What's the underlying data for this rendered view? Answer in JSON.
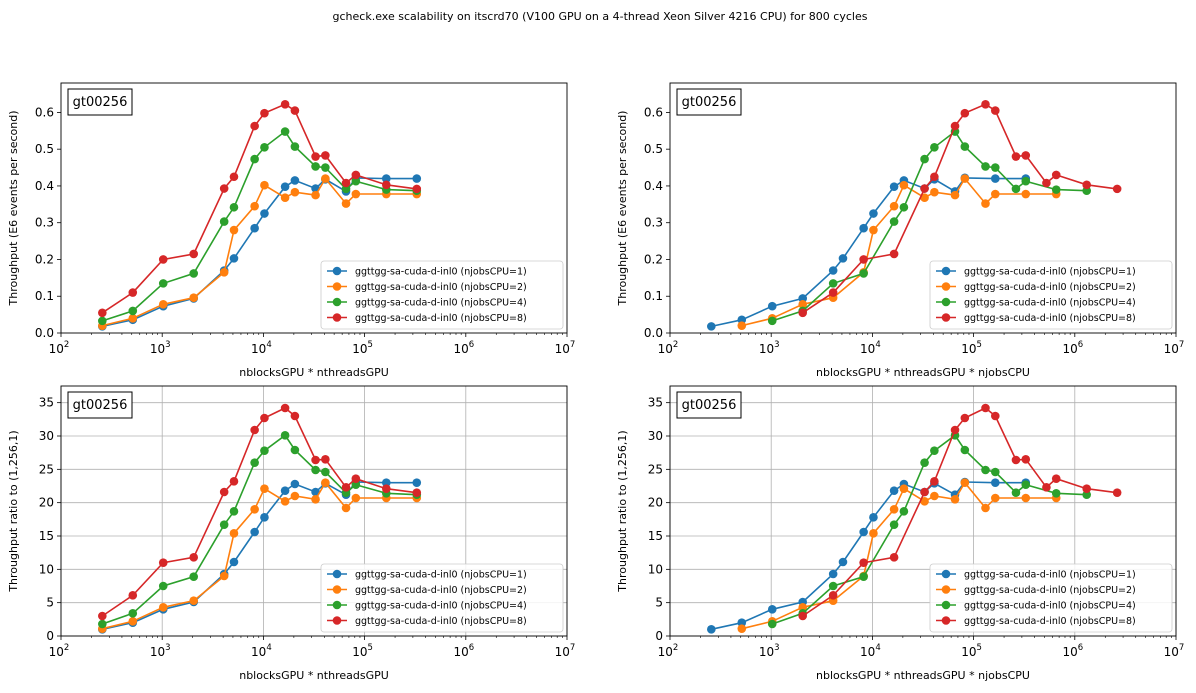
{
  "suptitle": "gcheck.exe scalability on itscrd70 (V100 GPU on a 4-thread Xeon Silver 4216 CPU) for 800 cycles",
  "colors": {
    "njobsCPU=1": "#1f77b4",
    "njobsCPU=2": "#ff7f0e",
    "njobsCPU=4": "#2ca02c",
    "njobsCPU=8": "#d62728",
    "grid": "#b0b0b0"
  },
  "legend_labels": [
    "ggttgg-sa-cuda-d-inl0 (njobsCPU=1)",
    "ggttgg-sa-cuda-d-inl0 (njobsCPU=2)",
    "ggttgg-sa-cuda-d-inl0 (njobsCPU=4)",
    "ggttgg-sa-cuda-d-inl0 (njobsCPU=8)"
  ],
  "chart_data": [
    {
      "type": "line",
      "panel": "top-left",
      "box_label": "gt00256",
      "xlabel": "nblocksGPU * nthreadsGPU",
      "ylabel": "Throughput (E6 events per second)",
      "xscale": "log",
      "xlim": [
        100,
        10000000
      ],
      "ylim": [
        0,
        0.68
      ],
      "yticks": [
        "0.0",
        "0.1",
        "0.2",
        "0.3",
        "0.4",
        "0.5",
        "0.6"
      ],
      "xticks": [
        "10^2",
        "10^3",
        "10^4",
        "10^5",
        "10^6",
        "10^7"
      ],
      "grid": false,
      "legend": "lower-right",
      "series": [
        {
          "name": "ggttgg-sa-cuda-d-inl0 (njobsCPU=1)",
          "color": "#1f77b4",
          "x": [
            256,
            512,
            1024,
            2048,
            4096,
            5120,
            8192,
            10240,
            16384,
            20480,
            32768,
            40960,
            65536,
            81920,
            163840,
            327680
          ],
          "y": [
            0.018,
            0.036,
            0.073,
            0.094,
            0.17,
            0.203,
            0.285,
            0.325,
            0.398,
            0.415,
            0.393,
            0.418,
            0.385,
            0.422,
            0.42,
            0.42
          ]
        },
        {
          "name": "ggttgg-sa-cuda-d-inl0 (njobsCPU=2)",
          "color": "#ff7f0e",
          "x": [
            256,
            512,
            1024,
            2048,
            4096,
            5120,
            8192,
            10240,
            16384,
            20480,
            32768,
            40960,
            65536,
            81920,
            163840,
            327680
          ],
          "y": [
            0.02,
            0.04,
            0.078,
            0.096,
            0.165,
            0.28,
            0.345,
            0.402,
            0.368,
            0.383,
            0.375,
            0.42,
            0.352,
            0.378,
            0.378,
            0.378
          ]
        },
        {
          "name": "ggttgg-sa-cuda-d-inl0 (njobsCPU=4)",
          "color": "#2ca02c",
          "x": [
            256,
            512,
            1024,
            2048,
            4096,
            5120,
            8192,
            10240,
            16384,
            20480,
            32768,
            40960,
            65536,
            81920,
            163840,
            327680
          ],
          "y": [
            0.033,
            0.06,
            0.135,
            0.162,
            0.303,
            0.342,
            0.473,
            0.505,
            0.548,
            0.507,
            0.453,
            0.45,
            0.392,
            0.413,
            0.39,
            0.387
          ]
        },
        {
          "name": "ggttgg-sa-cuda-d-inl0 (njobsCPU=8)",
          "color": "#d62728",
          "x": [
            256,
            512,
            1024,
            2048,
            4096,
            5120,
            8192,
            10240,
            16384,
            20480,
            32768,
            40960,
            65536,
            81920,
            163840,
            327680
          ],
          "y": [
            0.055,
            0.11,
            0.2,
            0.215,
            0.393,
            0.425,
            0.563,
            0.598,
            0.622,
            0.605,
            0.48,
            0.483,
            0.408,
            0.43,
            0.403,
            0.392
          ]
        }
      ]
    },
    {
      "type": "line",
      "panel": "top-right",
      "box_label": "gt00256",
      "xlabel": "nblocksGPU * nthreadsGPU * njobsCPU",
      "ylabel": "Throughput (E6 events per second)",
      "xscale": "log",
      "xlim": [
        100,
        10000000
      ],
      "ylim": [
        0,
        0.68
      ],
      "yticks": [
        "0.0",
        "0.1",
        "0.2",
        "0.3",
        "0.4",
        "0.5",
        "0.6"
      ],
      "xticks": [
        "10^2",
        "10^3",
        "10^4",
        "10^5",
        "10^6",
        "10^7"
      ],
      "grid": false,
      "legend": "lower-right",
      "series": [
        {
          "name": "ggttgg-sa-cuda-d-inl0 (njobsCPU=1)",
          "color": "#1f77b4",
          "x": [
            256,
            512,
            1024,
            2048,
            4096,
            5120,
            8192,
            10240,
            16384,
            20480,
            32768,
            40960,
            65536,
            81920,
            163840,
            327680
          ],
          "y": [
            0.018,
            0.036,
            0.073,
            0.094,
            0.17,
            0.203,
            0.285,
            0.325,
            0.398,
            0.415,
            0.393,
            0.418,
            0.385,
            0.422,
            0.42,
            0.42
          ]
        },
        {
          "name": "ggttgg-sa-cuda-d-inl0 (njobsCPU=2)",
          "color": "#ff7f0e",
          "x": [
            512,
            1024,
            2048,
            4096,
            8192,
            10240,
            16384,
            20480,
            32768,
            40960,
            65536,
            81920,
            131072,
            163840,
            327680,
            655360
          ],
          "y": [
            0.02,
            0.04,
            0.078,
            0.096,
            0.165,
            0.28,
            0.345,
            0.402,
            0.368,
            0.383,
            0.375,
            0.42,
            0.352,
            0.378,
            0.378,
            0.378
          ]
        },
        {
          "name": "ggttgg-sa-cuda-d-inl0 (njobsCPU=4)",
          "color": "#2ca02c",
          "x": [
            1024,
            2048,
            4096,
            8192,
            16384,
            20480,
            32768,
            40960,
            65536,
            81920,
            131072,
            163840,
            262144,
            327680,
            655360,
            1310720
          ],
          "y": [
            0.033,
            0.06,
            0.135,
            0.162,
            0.303,
            0.342,
            0.473,
            0.505,
            0.548,
            0.507,
            0.453,
            0.45,
            0.392,
            0.413,
            0.39,
            0.387
          ]
        },
        {
          "name": "ggttgg-sa-cuda-d-inl0 (njobsCPU=8)",
          "color": "#d62728",
          "x": [
            2048,
            4096,
            8192,
            16384,
            32768,
            40960,
            65536,
            81920,
            131072,
            163840,
            262144,
            327680,
            524288,
            655360,
            1310720,
            2621440
          ],
          "y": [
            0.055,
            0.11,
            0.2,
            0.215,
            0.393,
            0.425,
            0.563,
            0.598,
            0.622,
            0.605,
            0.48,
            0.483,
            0.408,
            0.43,
            0.403,
            0.392
          ]
        }
      ]
    },
    {
      "type": "line",
      "panel": "bottom-left",
      "box_label": "gt00256",
      "xlabel": "nblocksGPU * nthreadsGPU",
      "ylabel": "Throughput ratio to (1,256,1)",
      "xscale": "log",
      "xlim": [
        100,
        10000000
      ],
      "ylim": [
        0,
        37.5
      ],
      "yticks": [
        "0",
        "5",
        "10",
        "15",
        "20",
        "25",
        "30",
        "35"
      ],
      "xticks": [
        "10^2",
        "10^3",
        "10^4",
        "10^5",
        "10^6",
        "10^7"
      ],
      "grid": true,
      "legend": "lower-right",
      "series": [
        {
          "name": "ggttgg-sa-cuda-d-inl0 (njobsCPU=1)",
          "color": "#1f77b4",
          "x": [
            256,
            512,
            1024,
            2048,
            4096,
            5120,
            8192,
            10240,
            16384,
            20480,
            32768,
            40960,
            65536,
            81920,
            163840,
            327680
          ],
          "y": [
            1.0,
            2.0,
            4.0,
            5.1,
            9.3,
            11.1,
            15.6,
            17.8,
            21.8,
            22.8,
            21.6,
            22.9,
            21.2,
            23.1,
            23.0,
            23.0
          ]
        },
        {
          "name": "ggttgg-sa-cuda-d-inl0 (njobsCPU=2)",
          "color": "#ff7f0e",
          "x": [
            256,
            512,
            1024,
            2048,
            4096,
            5120,
            8192,
            10240,
            16384,
            20480,
            32768,
            40960,
            65536,
            81920,
            163840,
            327680
          ],
          "y": [
            1.1,
            2.2,
            4.3,
            5.3,
            9.0,
            15.4,
            19.0,
            22.1,
            20.2,
            21.0,
            20.5,
            23.0,
            19.2,
            20.7,
            20.7,
            20.7
          ]
        },
        {
          "name": "ggttgg-sa-cuda-d-inl0 (njobsCPU=4)",
          "color": "#2ca02c",
          "x": [
            256,
            512,
            1024,
            2048,
            4096,
            5120,
            8192,
            10240,
            16384,
            20480,
            32768,
            40960,
            65536,
            81920,
            163840,
            327680
          ],
          "y": [
            1.8,
            3.4,
            7.5,
            8.9,
            16.7,
            18.7,
            26.0,
            27.8,
            30.1,
            27.9,
            24.9,
            24.6,
            21.5,
            22.7,
            21.4,
            21.2
          ]
        },
        {
          "name": "ggttgg-sa-cuda-d-inl0 (njobsCPU=8)",
          "color": "#d62728",
          "x": [
            256,
            512,
            1024,
            2048,
            4096,
            5120,
            8192,
            10240,
            16384,
            20480,
            32768,
            40960,
            65536,
            81920,
            163840,
            327680
          ],
          "y": [
            3.0,
            6.1,
            11.0,
            11.8,
            21.6,
            23.2,
            30.9,
            32.7,
            34.2,
            33.0,
            26.4,
            26.5,
            22.3,
            23.6,
            22.1,
            21.5
          ]
        }
      ]
    },
    {
      "type": "line",
      "panel": "bottom-right",
      "box_label": "gt00256",
      "xlabel": "nblocksGPU * nthreadsGPU * njobsCPU",
      "ylabel": "Throughput ratio to (1,256,1)",
      "xscale": "log",
      "xlim": [
        100,
        10000000
      ],
      "ylim": [
        0,
        37.5
      ],
      "yticks": [
        "0",
        "5",
        "10",
        "15",
        "20",
        "25",
        "30",
        "35"
      ],
      "xticks": [
        "10^2",
        "10^3",
        "10^4",
        "10^5",
        "10^6",
        "10^7"
      ],
      "grid": true,
      "legend": "lower-right",
      "series": [
        {
          "name": "ggttgg-sa-cuda-d-inl0 (njobsCPU=1)",
          "color": "#1f77b4",
          "x": [
            256,
            512,
            1024,
            2048,
            4096,
            5120,
            8192,
            10240,
            16384,
            20480,
            32768,
            40960,
            65536,
            81920,
            163840,
            327680
          ],
          "y": [
            1.0,
            2.0,
            4.0,
            5.1,
            9.3,
            11.1,
            15.6,
            17.8,
            21.8,
            22.8,
            21.6,
            22.9,
            21.2,
            23.1,
            23.0,
            23.0
          ]
        },
        {
          "name": "ggttgg-sa-cuda-d-inl0 (njobsCPU=2)",
          "color": "#ff7f0e",
          "x": [
            512,
            1024,
            2048,
            4096,
            8192,
            10240,
            16384,
            20480,
            32768,
            40960,
            65536,
            81920,
            131072,
            163840,
            327680,
            655360
          ],
          "y": [
            1.1,
            2.2,
            4.3,
            5.3,
            9.0,
            15.4,
            19.0,
            22.1,
            20.2,
            21.0,
            20.5,
            23.0,
            19.2,
            20.7,
            20.7,
            20.7
          ]
        },
        {
          "name": "ggttgg-sa-cuda-d-inl0 (njobsCPU=4)",
          "color": "#2ca02c",
          "x": [
            1024,
            2048,
            4096,
            8192,
            16384,
            20480,
            32768,
            40960,
            65536,
            81920,
            131072,
            163840,
            262144,
            327680,
            655360,
            1310720
          ],
          "y": [
            1.8,
            3.4,
            7.5,
            8.9,
            16.7,
            18.7,
            26.0,
            27.8,
            30.1,
            27.9,
            24.9,
            24.6,
            21.5,
            22.7,
            21.4,
            21.2
          ]
        },
        {
          "name": "ggttgg-sa-cuda-d-inl0 (njobsCPU=8)",
          "color": "#d62728",
          "x": [
            2048,
            4096,
            8192,
            16384,
            32768,
            40960,
            65536,
            81920,
            131072,
            163840,
            262144,
            327680,
            524288,
            655360,
            1310720,
            2621440
          ],
          "y": [
            3.0,
            6.1,
            11.0,
            11.8,
            21.6,
            23.2,
            30.9,
            32.7,
            34.2,
            33.0,
            26.4,
            26.5,
            22.3,
            23.6,
            22.1,
            21.5
          ]
        }
      ]
    }
  ]
}
